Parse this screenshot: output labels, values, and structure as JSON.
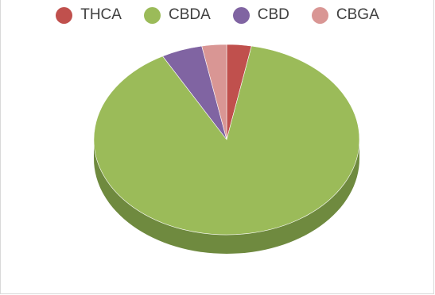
{
  "chart_data": {
    "type": "pie",
    "style": "3d",
    "title": "",
    "legend_position": "top",
    "categories": [
      "THCA",
      "CBDA",
      "CBD",
      "CBGA"
    ],
    "values": [
      3,
      89,
      5,
      3
    ],
    "colors": {
      "THCA": "#c0504d",
      "CBDA": "#9bbb59",
      "CBD": "#8064a2",
      "CBGA": "#d99694"
    },
    "side_colors": {
      "THCA": "#8f3b39",
      "CBDA": "#6f8a3f",
      "CBD": "#5e4a78",
      "CBGA": "#a86e6c"
    }
  }
}
